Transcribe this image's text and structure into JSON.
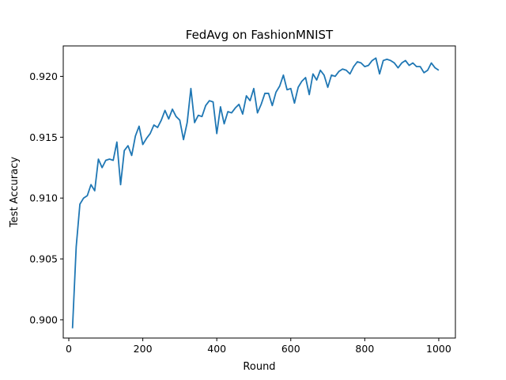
{
  "chart_data": {
    "type": "line",
    "title": "FedAvg on FashionMNIST",
    "xlabel": "Round",
    "ylabel": "Test Accuracy",
    "xlim": [
      -15,
      1045
    ],
    "ylim": [
      0.8985,
      0.9225
    ],
    "xticks": [
      0,
      200,
      400,
      600,
      800,
      1000
    ],
    "yticks": [
      0.9,
      0.905,
      0.91,
      0.915,
      0.92
    ],
    "grid": false,
    "legend": "none",
    "series": [
      {
        "color": "#1f77b4",
        "x": [
          10,
          20,
          30,
          40,
          50,
          60,
          70,
          80,
          90,
          100,
          110,
          120,
          130,
          140,
          150,
          160,
          170,
          180,
          190,
          200,
          210,
          220,
          230,
          240,
          250,
          260,
          270,
          280,
          290,
          300,
          310,
          320,
          330,
          340,
          350,
          360,
          370,
          380,
          390,
          400,
          410,
          420,
          430,
          440,
          450,
          460,
          470,
          480,
          490,
          500,
          510,
          520,
          530,
          540,
          550,
          560,
          570,
          580,
          590,
          600,
          610,
          620,
          630,
          640,
          650,
          660,
          670,
          680,
          690,
          700,
          710,
          720,
          730,
          740,
          750,
          760,
          770,
          780,
          790,
          800,
          810,
          820,
          830,
          840,
          850,
          860,
          870,
          880,
          890,
          900,
          910,
          920,
          930,
          940,
          950,
          960,
          970,
          980,
          990,
          1000
        ],
        "y": [
          0.8993,
          0.906,
          0.9095,
          0.91,
          0.9102,
          0.9111,
          0.9106,
          0.9132,
          0.9125,
          0.9131,
          0.9132,
          0.9131,
          0.9146,
          0.9111,
          0.9139,
          0.9143,
          0.9135,
          0.9151,
          0.9159,
          0.9144,
          0.9149,
          0.9153,
          0.916,
          0.9158,
          0.9164,
          0.9172,
          0.9165,
          0.9173,
          0.9167,
          0.9164,
          0.9148,
          0.9162,
          0.919,
          0.9162,
          0.9168,
          0.9167,
          0.9176,
          0.918,
          0.9179,
          0.9153,
          0.9175,
          0.9161,
          0.9171,
          0.917,
          0.9174,
          0.9177,
          0.9169,
          0.9184,
          0.918,
          0.919,
          0.917,
          0.9177,
          0.9186,
          0.9186,
          0.9176,
          0.9187,
          0.9192,
          0.9201,
          0.9189,
          0.919,
          0.9178,
          0.9191,
          0.9196,
          0.9199,
          0.9185,
          0.9202,
          0.9197,
          0.9205,
          0.9201,
          0.9191,
          0.9201,
          0.92,
          0.9204,
          0.9206,
          0.9205,
          0.9202,
          0.9208,
          0.9212,
          0.9211,
          0.9208,
          0.9209,
          0.9213,
          0.9215,
          0.9202,
          0.9213,
          0.9214,
          0.9213,
          0.9211,
          0.9207,
          0.9211,
          0.9213,
          0.9209,
          0.9211,
          0.9208,
          0.9208,
          0.9203,
          0.9205,
          0.9211,
          0.9207,
          0.9205
        ]
      }
    ]
  }
}
